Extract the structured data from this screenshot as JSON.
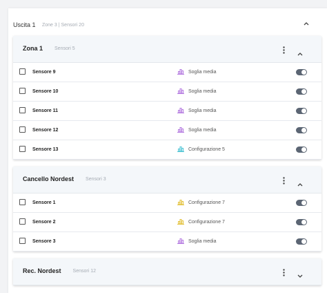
{
  "header": {
    "title": "Uscita 1",
    "subtitle": "Zone 3 | Sensori 20",
    "expanded": true
  },
  "zones": [
    {
      "title": "Zona 1",
      "subtitle": "Sensori 5",
      "expanded": true,
      "sensors": [
        {
          "name": "Sensore 9",
          "mode": "Soglia media",
          "color": "#b57be0"
        },
        {
          "name": "Sensore 10",
          "mode": "Soglia media",
          "color": "#b57be0"
        },
        {
          "name": "Sensore 11",
          "mode": "Soglia media",
          "color": "#b57be0"
        },
        {
          "name": "Sensore 12",
          "mode": "Soglia media",
          "color": "#b57be0"
        },
        {
          "name": "Sensore 13",
          "mode": "Configurazione 5",
          "color": "#4cc3d4"
        }
      ]
    },
    {
      "title": "Cancello Nordest",
      "subtitle": "Sensori 3",
      "expanded": true,
      "sensors": [
        {
          "name": "Sensore 1",
          "mode": "Configurazione 7",
          "color": "#e3c23c"
        },
        {
          "name": "Sensore 2",
          "mode": "Configurazione 7",
          "color": "#e3c23c"
        },
        {
          "name": "Sensore 3",
          "mode": "Soglia media",
          "color": "#b57be0"
        }
      ]
    },
    {
      "title": "Rec. Nordest",
      "subtitle": "Sensori 12",
      "expanded": false,
      "sensors": []
    }
  ]
}
